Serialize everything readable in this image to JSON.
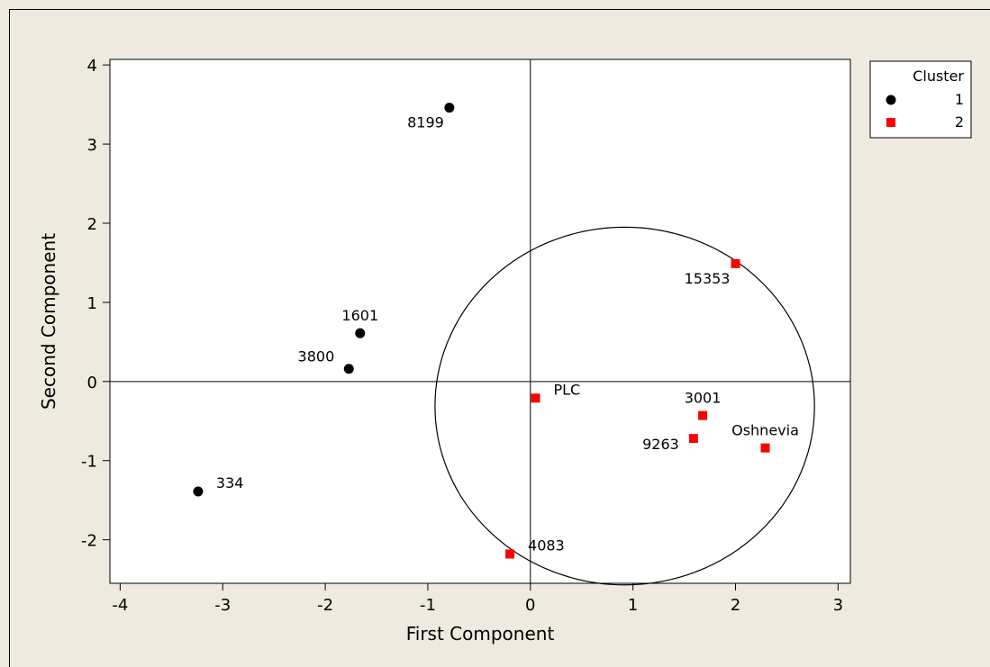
{
  "chart_data": {
    "type": "scatter",
    "xlabel": "First Component",
    "ylabel": "Second Component",
    "xlim": [
      -4.1,
      3.12
    ],
    "ylim": [
      -2.55,
      4.07
    ],
    "xticks": [
      -4,
      -3,
      -2,
      -1,
      0,
      1,
      2,
      3
    ],
    "yticks": [
      -2,
      -1,
      0,
      1,
      2,
      3,
      4
    ],
    "reference_lines": {
      "x": 0,
      "y": 0
    },
    "grid": false,
    "legend": {
      "title": "Cluster",
      "placement": "outside-top-right",
      "entries": [
        {
          "label": "1",
          "marker": "circle",
          "color": "#000000"
        },
        {
          "label": "2",
          "marker": "square",
          "color": "#ff0000"
        }
      ]
    },
    "series": [
      {
        "name": "1",
        "marker": "circle",
        "color": "#000000",
        "points": [
          {
            "label": "8199",
            "x": -0.79,
            "y": 3.46,
            "label_side": "left-below"
          },
          {
            "label": "1601",
            "x": -1.66,
            "y": 0.61,
            "label_side": "above"
          },
          {
            "label": "3800",
            "x": -1.77,
            "y": 0.16,
            "label_side": "left"
          },
          {
            "label": "334",
            "x": -3.24,
            "y": -1.39,
            "label_side": "right"
          }
        ]
      },
      {
        "name": "2",
        "marker": "square",
        "color": "#ff0000",
        "points": [
          {
            "label": "15353",
            "x": 2.0,
            "y": 1.49,
            "label_side": "left-below"
          },
          {
            "label": "PLC",
            "x": 0.05,
            "y": -0.21,
            "label_side": "right"
          },
          {
            "label": "3001",
            "x": 1.68,
            "y": -0.43,
            "label_side": "above"
          },
          {
            "label": "9263",
            "x": 1.59,
            "y": -0.72,
            "label_side": "left"
          },
          {
            "label": "Oshnevia",
            "x": 2.29,
            "y": -0.84,
            "label_side": "above"
          },
          {
            "label": "4083",
            "x": -0.2,
            "y": -2.18,
            "label_side": "right"
          }
        ]
      }
    ],
    "annotations": [
      {
        "type": "ellipse",
        "cx": 0.92,
        "cy": -0.31,
        "rx": 1.85,
        "ry": 2.26
      }
    ]
  }
}
